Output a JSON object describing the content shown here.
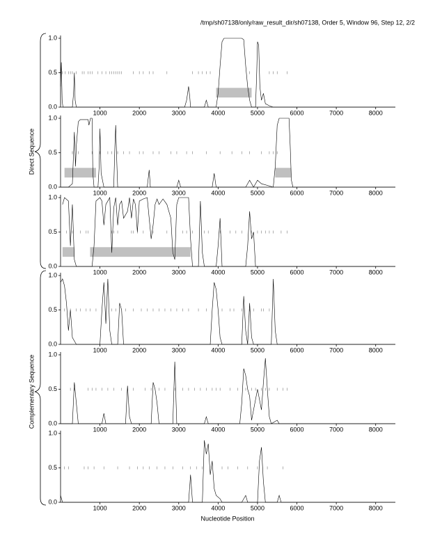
{
  "title": "/tmp/sh07138/only/raw_result_dir/sh07138, Order 5, Window 96, Step 12, 2/2",
  "group_labels": [
    "Direct Sequence",
    "Complementary Sequence"
  ],
  "xlabel": "Nucleotide Position",
  "chart_data": [
    {
      "type": "line",
      "xlim": [
        0,
        8500
      ],
      "ylim": [
        0,
        1
      ],
      "xticks": [
        1000,
        2000,
        3000,
        4000,
        5000,
        6000,
        7000,
        8000
      ],
      "yticks": [
        {
          "value": 0,
          "label": "0.0"
        },
        {
          "value": 0.5,
          "label": "0.5"
        },
        {
          "value": 1,
          "label": "1.0"
        }
      ],
      "x": [
        0,
        20,
        40,
        60,
        300,
        330,
        350,
        370,
        400,
        3150,
        3200,
        3250,
        3280,
        3300,
        3650,
        3700,
        3750,
        3950,
        4000,
        4050,
        4100,
        4150,
        4600,
        4650,
        4700,
        4750,
        4800,
        4850,
        4950,
        4980,
        5000,
        5030,
        5060,
        5100,
        5150,
        5200,
        5300,
        5400,
        5600,
        8500
      ],
      "values": [
        0.3,
        0.65,
        0.1,
        0,
        0,
        0.2,
        0.5,
        0.1,
        0,
        0,
        0.1,
        0.3,
        0.15,
        0,
        0,
        0.1,
        0,
        0,
        0.2,
        0.6,
        0.95,
        1,
        1,
        0.98,
        0.6,
        0.3,
        0.1,
        0,
        0,
        0.5,
        0.95,
        0.9,
        0.3,
        0.1,
        0.2,
        0.05,
        0.02,
        0,
        0,
        0
      ],
      "regions": [
        [
          3950,
          4850
        ]
      ],
      "stops": [
        50,
        120,
        200,
        250,
        300,
        400,
        550,
        600,
        700,
        750,
        800,
        950,
        1050,
        1150,
        1250,
        1300,
        1350,
        1400,
        1450,
        1500,
        1550,
        1850,
        2000,
        2100,
        2250,
        2350,
        2700,
        3350,
        3500,
        3600,
        3700,
        3800,
        4800,
        5300,
        5400,
        5500,
        5750
      ]
    },
    {
      "type": "line",
      "xlim": [
        0,
        8500
      ],
      "ylim": [
        0,
        1
      ],
      "xticks": [
        1000,
        2000,
        3000,
        4000,
        5000,
        6000,
        7000,
        8000
      ],
      "yticks": [
        {
          "value": 0,
          "label": "0.0"
        },
        {
          "value": 0.5,
          "label": "0.5"
        },
        {
          "value": 1,
          "label": "1.0"
        }
      ],
      "x": [
        0,
        200,
        300,
        330,
        350,
        380,
        400,
        450,
        500,
        700,
        720,
        760,
        800,
        820,
        850,
        950,
        980,
        1000,
        1030,
        1100,
        1350,
        1380,
        1400,
        1420,
        1450,
        2200,
        2250,
        2280,
        2950,
        3000,
        3050,
        3850,
        3900,
        3950,
        4700,
        4800,
        4900,
        5000,
        5100,
        5400,
        5450,
        5500,
        5550,
        5600,
        5800,
        5830,
        5860,
        5900,
        6000,
        8500
      ],
      "values": [
        0,
        0,
        0.05,
        0.5,
        0.8,
        0.3,
        0.6,
        0.95,
        0.98,
        0.98,
        0.9,
        1,
        1,
        0.2,
        0,
        0,
        0.3,
        0.85,
        0.2,
        0,
        0,
        0.6,
        0.9,
        0.5,
        0,
        0,
        0.25,
        0,
        0,
        0.1,
        0,
        0,
        0.2,
        0,
        0,
        0.1,
        0,
        0.1,
        0.05,
        0,
        0.3,
        0.9,
        1,
        1,
        1,
        0.6,
        0.1,
        0,
        0,
        0
      ],
      "regions": [
        [
          100,
          900
        ],
        [
          5450,
          5850
        ]
      ],
      "stops": [
        300,
        450,
        800,
        1000,
        1200,
        1300,
        1450,
        1600,
        1750,
        2000,
        2100,
        2350,
        2500,
        2800,
        2950,
        3200,
        3350,
        3700,
        4050,
        4350,
        4600,
        4800,
        5100,
        5300,
        5400,
        5500
      ]
    },
    {
      "type": "line",
      "xlim": [
        0,
        8500
      ],
      "ylim": [
        0,
        1
      ],
      "xticks": [
        1000,
        2000,
        3000,
        4000,
        5000,
        6000,
        7000,
        8000
      ],
      "yticks": [
        {
          "value": 0,
          "label": "0.0"
        },
        {
          "value": 0.5,
          "label": "0.5"
        },
        {
          "value": 1,
          "label": "1.0"
        }
      ],
      "x": [
        50,
        100,
        200,
        250,
        300,
        350,
        400,
        800,
        850,
        900,
        1000,
        1050,
        1100,
        1150,
        1200,
        1250,
        1300,
        1350,
        1400,
        1450,
        1500,
        1550,
        1600,
        1700,
        1750,
        1800,
        1850,
        1900,
        1950,
        2000,
        2100,
        2200,
        2250,
        2300,
        2350,
        2400,
        2450,
        2500,
        2600,
        2700,
        2800,
        2850,
        2900,
        2950,
        3000,
        3250,
        3300,
        3350,
        3500,
        3550,
        3600,
        3650,
        3950,
        4000,
        4050,
        4100,
        4700,
        4750,
        4800,
        4850,
        4900,
        4950,
        8500
      ],
      "values": [
        0.9,
        1,
        0.95,
        0.3,
        0.9,
        0.1,
        0,
        0,
        0.3,
        0.95,
        1,
        0.95,
        0.6,
        0.9,
        0.95,
        1,
        0.2,
        0.85,
        1,
        0.6,
        0.9,
        0.95,
        0.7,
        0.8,
        1,
        0.7,
        0.98,
        0.9,
        0.5,
        0.95,
        0.98,
        1,
        0.7,
        0.4,
        0.6,
        0.9,
        0.98,
        0.9,
        0.98,
        0.9,
        0.7,
        0.2,
        0.1,
        0.9,
        1,
        1,
        0.4,
        0,
        0,
        0.95,
        0.2,
        0,
        0,
        0.3,
        0.7,
        0,
        0,
        0.3,
        0.8,
        0.4,
        0.5,
        0,
        0
      ],
      "regions": [
        [
          50,
          350
        ],
        [
          750,
          3300
        ]
      ],
      "stops": [
        150,
        300,
        500,
        650,
        700,
        1300,
        1350,
        1450,
        1800,
        1850,
        1950,
        2100,
        2350,
        2700,
        3100,
        3200,
        3350,
        3650,
        3750,
        4050,
        4300,
        4450,
        4600,
        4850,
        5000,
        5100,
        5200,
        5300,
        5400,
        5600,
        5750
      ]
    },
    {
      "type": "line",
      "xlim": [
        0,
        8500
      ],
      "ylim": [
        0,
        1
      ],
      "xticks": [
        1000,
        2000,
        3000,
        4000,
        5000,
        6000,
        7000,
        8000
      ],
      "yticks": [
        {
          "value": 0,
          "label": "0.0"
        },
        {
          "value": 0.5,
          "label": "0.5"
        },
        {
          "value": 1,
          "label": "1.0"
        }
      ],
      "x": [
        0,
        50,
        100,
        150,
        200,
        250,
        300,
        400,
        1000,
        1050,
        1100,
        1150,
        1200,
        1250,
        1300,
        1450,
        1500,
        1550,
        1600,
        3800,
        3850,
        3900,
        3950,
        4000,
        4050,
        4100,
        4600,
        4650,
        4700,
        4750,
        4800,
        4850,
        4900,
        5350,
        5400,
        5450,
        5500,
        8500
      ],
      "values": [
        0.9,
        0.95,
        0.85,
        0.6,
        0.2,
        0.5,
        0.1,
        0,
        0,
        0.5,
        0.9,
        0.3,
        0.95,
        0.2,
        0,
        0,
        0.6,
        0.5,
        0,
        0,
        0.5,
        0.9,
        0.8,
        0.5,
        0.1,
        0,
        0,
        0.7,
        0.2,
        0,
        0.6,
        0.1,
        0,
        0,
        0.95,
        0.2,
        0,
        0
      ],
      "stops": [
        100,
        250,
        400,
        500,
        650,
        750,
        900,
        1300,
        1400,
        1650,
        1850,
        2050,
        2200,
        2350,
        2500,
        2650,
        2800,
        2950,
        3100,
        3250,
        3500,
        3700,
        4100,
        4300,
        4400,
        4600,
        4800,
        4900,
        5100,
        5150,
        5300
      ]
    },
    {
      "type": "line",
      "xlim": [
        0,
        8500
      ],
      "ylim": [
        0,
        1
      ],
      "xticks": [
        1000,
        2000,
        3000,
        4000,
        5000,
        6000,
        7000,
        8000
      ],
      "yticks": [
        {
          "value": 0,
          "label": "0.0"
        },
        {
          "value": 0.5,
          "label": "0.5"
        },
        {
          "value": 1,
          "label": "1.0"
        }
      ],
      "x": [
        0,
        300,
        350,
        400,
        450,
        1050,
        1100,
        1150,
        1650,
        1700,
        1750,
        1800,
        2300,
        2350,
        2400,
        2450,
        2500,
        2850,
        2900,
        2950,
        3650,
        3700,
        3750,
        4550,
        4600,
        4650,
        4700,
        4750,
        4800,
        4850,
        5000,
        5100,
        5150,
        5200,
        5250,
        5300,
        5350,
        5500,
        5550,
        8500
      ],
      "values": [
        0,
        0,
        0.6,
        0.3,
        0,
        0,
        0.15,
        0,
        0,
        0.55,
        0.1,
        0,
        0,
        0.6,
        0.5,
        0.3,
        0,
        0,
        0.9,
        0,
        0,
        0.1,
        0,
        0,
        0.3,
        0.8,
        0.7,
        0.5,
        0.4,
        0.05,
        0.5,
        0.2,
        0.6,
        0.95,
        0.5,
        0.1,
        0,
        0.05,
        0,
        0
      ],
      "stops": [
        250,
        350,
        700,
        800,
        900,
        1050,
        1200,
        1350,
        1550,
        1700,
        1850,
        2150,
        2300,
        2500,
        2650,
        2900,
        3100,
        3250,
        3400,
        3550,
        3700,
        3850,
        3950,
        4050,
        4300,
        4500,
        4700,
        4850,
        4950,
        5100,
        5200,
        5300,
        5500,
        5650,
        5750
      ]
    },
    {
      "type": "line",
      "xlim": [
        0,
        8500
      ],
      "ylim": [
        0,
        1
      ],
      "xticks": [
        1000,
        2000,
        3000,
        4000,
        5000,
        6000,
        7000,
        8000
      ],
      "yticks": [
        {
          "value": 0,
          "label": "0.0"
        },
        {
          "value": 0.5,
          "label": "0.5"
        },
        {
          "value": 1,
          "label": "1.0"
        }
      ],
      "x": [
        0,
        50,
        3250,
        3300,
        3350,
        3600,
        3650,
        3700,
        3750,
        3800,
        3850,
        3900,
        3950,
        4050,
        4100,
        4600,
        4700,
        4750,
        5000,
        5050,
        5100,
        5150,
        5200,
        5500,
        5550,
        5600,
        8500
      ],
      "values": [
        0.1,
        0,
        0,
        0.4,
        0,
        0,
        0.9,
        0.7,
        0.85,
        0.4,
        0.6,
        0.2,
        0.1,
        0.05,
        0,
        0,
        0.1,
        0,
        0,
        0.6,
        0.8,
        0.3,
        0,
        0,
        0.1,
        0,
        0
      ],
      "stops": [
        100,
        200,
        600,
        700,
        850,
        1100,
        1450,
        1750,
        1950,
        2100,
        2250,
        2450,
        2650,
        2850,
        3100,
        3300,
        3450,
        3600,
        4100,
        4250,
        4500,
        4750,
        5000,
        5250,
        5650
      ]
    }
  ]
}
